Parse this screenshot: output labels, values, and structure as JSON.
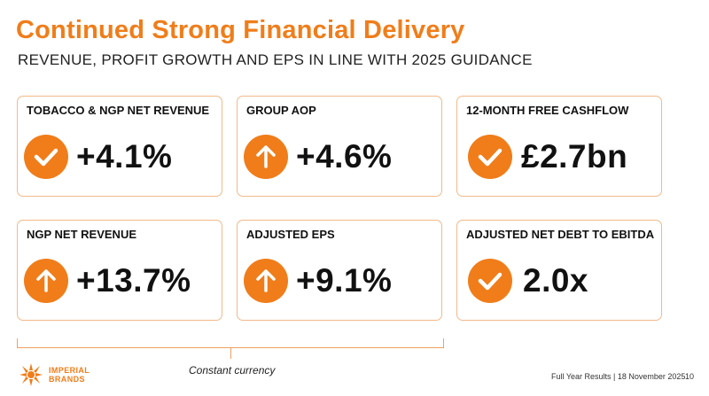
{
  "header": {
    "title": "Continued Strong Financial Delivery",
    "subtitle": "REVENUE, PROFIT GROWTH AND EPS IN LINE WITH 2025 GUIDANCE"
  },
  "cards": [
    {
      "label": "TOBACCO & NGP NET REVENUE",
      "value": "+4.1%",
      "icon": "check-icon"
    },
    {
      "label": "GROUP AOP",
      "value": "+4.6%",
      "icon": "arrow-up-icon"
    },
    {
      "label": "12-MONTH FREE CASHFLOW",
      "value": "£2.7bn",
      "icon": "check-icon"
    },
    {
      "label": "NGP NET REVENUE",
      "value": "+13.7%",
      "icon": "arrow-up-icon"
    },
    {
      "label": "ADJUSTED EPS",
      "value": "+9.1%",
      "icon": "arrow-up-icon"
    },
    {
      "label": "ADJUSTED NET DEBT TO EBITDA",
      "value": "2.0x",
      "icon": "check-icon"
    }
  ],
  "bracket_label": "Constant currency",
  "logo": {
    "line1": "IMPERIAL",
    "line2": "BRANDS"
  },
  "footer": {
    "text": "Full Year Results | 18 November 2025",
    "page": "10"
  },
  "colors": {
    "accent": "#F07D1A",
    "card_border": "#F2B98A"
  }
}
